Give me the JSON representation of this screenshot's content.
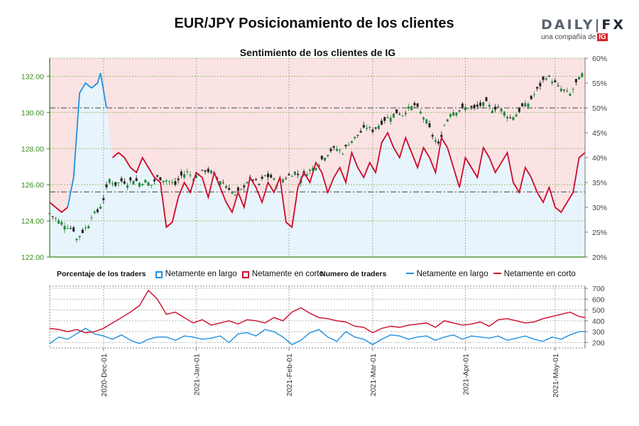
{
  "header": {
    "title": "EUR/JPY Posicionamiento de los clientes",
    "subtitle": "Sentimiento de los clientes de IG"
  },
  "logo": {
    "brand_a": "DAILY",
    "brand_sep": "|",
    "brand_b": "FX",
    "tagline": "una compañía de",
    "badge": "IG"
  },
  "legend": {
    "pct_title": "Porcentaje de los traders",
    "pct_long": "Netamente en largo",
    "pct_short": "Netamente en corto",
    "num_title": "Numero de traders",
    "num_long": "Netamente en largo",
    "num_short": "Netamente en corto"
  },
  "colors": {
    "long": "#1e90e0",
    "short": "#cc0a2a",
    "long_fill": "#e8f4fc",
    "short_fill": "#fbe3e4",
    "candle_up": "#1f8a3a",
    "candle_down": "#222222",
    "axis_left": "#3a8a1a",
    "grid": "#9ab86a",
    "refline": "#666666"
  },
  "chart_data": [
    {
      "type": "candlestick+area",
      "title": "Sentimiento de los clientes de IG",
      "yleft_ticks": [
        "122.00",
        "124.00",
        "126.00",
        "128.00",
        "130.00",
        "132.00"
      ],
      "yleft_range": [
        122.0,
        133.0
      ],
      "yright_ticks": [
        "20%",
        "25%",
        "30%",
        "35%",
        "40%",
        "45%",
        "50%",
        "55%",
        "60%"
      ],
      "yright_range": [
        20,
        60
      ],
      "x_ticks": [
        "2020-Dec-01",
        "2021-Jan-01",
        "2021-Feb-01",
        "2021-Mar-01",
        "2021-Apr-01",
        "2021-May-01"
      ],
      "x_tick_days": [
        18,
        49,
        80,
        108,
        139,
        169
      ],
      "x_range": [
        0,
        179
      ],
      "reference_lines": [
        130.25,
        125.6
      ],
      "price_close": [
        [
          0,
          124.4
        ],
        [
          3,
          124.0
        ],
        [
          6,
          123.7
        ],
        [
          8,
          123.5
        ],
        [
          9,
          123.0
        ],
        [
          11,
          123.4
        ],
        [
          13,
          123.8
        ],
        [
          14,
          124.3
        ],
        [
          16,
          124.5
        ],
        [
          18,
          125.2
        ],
        [
          20,
          126.3
        ],
        [
          22,
          126.0
        ],
        [
          24,
          126.2
        ],
        [
          26,
          126.1
        ],
        [
          28,
          126.3
        ],
        [
          30,
          126.1
        ],
        [
          32,
          126.2
        ],
        [
          34,
          126.0
        ],
        [
          36,
          126.4
        ],
        [
          38,
          126.3
        ],
        [
          40,
          126.2
        ],
        [
          42,
          126.0
        ],
        [
          44,
          126.5
        ],
        [
          46,
          126.7
        ],
        [
          48,
          126.4
        ],
        [
          50,
          126.6
        ],
        [
          52,
          126.8
        ],
        [
          54,
          126.7
        ],
        [
          56,
          126.4
        ],
        [
          58,
          126.1
        ],
        [
          60,
          125.8
        ],
        [
          62,
          125.4
        ],
        [
          64,
          125.7
        ],
        [
          66,
          126.2
        ],
        [
          68,
          126.3
        ],
        [
          70,
          126.0
        ],
        [
          72,
          126.5
        ],
        [
          74,
          126.4
        ],
        [
          76,
          126.1
        ],
        [
          78,
          126.3
        ],
        [
          80,
          126.5
        ],
        [
          82,
          126.7
        ],
        [
          84,
          126.4
        ],
        [
          86,
          126.7
        ],
        [
          88,
          126.9
        ],
        [
          90,
          127.2
        ],
        [
          92,
          127.6
        ],
        [
          94,
          127.9
        ],
        [
          96,
          128.0
        ],
        [
          98,
          127.8
        ],
        [
          100,
          128.3
        ],
        [
          102,
          128.6
        ],
        [
          104,
          128.9
        ],
        [
          106,
          129.2
        ],
        [
          108,
          129.0
        ],
        [
          110,
          129.3
        ],
        [
          112,
          129.6
        ],
        [
          114,
          129.8
        ],
        [
          116,
          130.0
        ],
        [
          118,
          129.9
        ],
        [
          120,
          130.2
        ],
        [
          122,
          130.4
        ],
        [
          124,
          130.0
        ],
        [
          126,
          129.5
        ],
        [
          128,
          128.7
        ],
        [
          130,
          128.2
        ],
        [
          132,
          129.3
        ],
        [
          134,
          130.0
        ],
        [
          136,
          130.1
        ],
        [
          138,
          130.2
        ],
        [
          140,
          130.3
        ],
        [
          142,
          130.2
        ],
        [
          144,
          130.4
        ],
        [
          146,
          130.5
        ],
        [
          148,
          130.2
        ],
        [
          150,
          130.3
        ],
        [
          152,
          130.0
        ],
        [
          154,
          129.7
        ],
        [
          156,
          129.9
        ],
        [
          158,
          130.3
        ],
        [
          160,
          130.5
        ],
        [
          162,
          131.0
        ],
        [
          164,
          131.5
        ],
        [
          166,
          132.0
        ],
        [
          168,
          131.8
        ],
        [
          170,
          131.4
        ],
        [
          172,
          131.2
        ],
        [
          174,
          131.0
        ],
        [
          176,
          131.6
        ],
        [
          178,
          132.1
        ]
      ],
      "long_pct": [
        [
          0,
          31
        ],
        [
          2,
          30
        ],
        [
          4,
          29
        ],
        [
          6,
          30
        ],
        [
          8,
          36
        ],
        [
          10,
          53
        ],
        [
          12,
          55
        ],
        [
          14,
          54
        ],
        [
          16,
          55
        ],
        [
          17,
          57
        ],
        [
          19,
          50
        ],
        [
          21,
          40
        ],
        [
          23,
          41
        ],
        [
          25,
          40
        ],
        [
          27,
          38
        ],
        [
          29,
          37
        ],
        [
          31,
          40
        ],
        [
          33,
          38
        ],
        [
          35,
          36
        ],
        [
          37,
          35
        ],
        [
          39,
          26
        ],
        [
          41,
          27
        ],
        [
          43,
          32
        ],
        [
          45,
          35
        ],
        [
          47,
          33
        ],
        [
          49,
          37
        ],
        [
          51,
          36
        ],
        [
          53,
          32
        ],
        [
          55,
          37
        ],
        [
          57,
          34
        ],
        [
          59,
          31
        ],
        [
          61,
          29
        ],
        [
          63,
          33
        ],
        [
          65,
          30
        ],
        [
          67,
          36
        ],
        [
          69,
          34
        ],
        [
          71,
          31
        ],
        [
          73,
          35
        ],
        [
          75,
          33
        ],
        [
          77,
          36
        ],
        [
          79,
          27
        ],
        [
          81,
          26
        ],
        [
          83,
          34
        ],
        [
          85,
          37
        ],
        [
          87,
          35
        ],
        [
          89,
          39
        ],
        [
          91,
          37
        ],
        [
          93,
          33
        ],
        [
          95,
          36
        ],
        [
          97,
          38
        ],
        [
          99,
          35
        ],
        [
          101,
          41
        ],
        [
          103,
          38
        ],
        [
          105,
          36
        ],
        [
          107,
          39
        ],
        [
          109,
          37
        ],
        [
          111,
          43
        ],
        [
          113,
          45
        ],
        [
          115,
          42
        ],
        [
          117,
          40
        ],
        [
          119,
          44
        ],
        [
          121,
          41
        ],
        [
          123,
          38
        ],
        [
          125,
          42
        ],
        [
          127,
          40
        ],
        [
          129,
          37
        ],
        [
          131,
          44
        ],
        [
          133,
          42
        ],
        [
          135,
          38
        ],
        [
          137,
          34
        ],
        [
          139,
          40
        ],
        [
          141,
          38
        ],
        [
          143,
          36
        ],
        [
          145,
          42
        ],
        [
          147,
          40
        ],
        [
          149,
          37
        ],
        [
          151,
          39
        ],
        [
          153,
          41
        ],
        [
          155,
          35
        ],
        [
          157,
          33
        ],
        [
          159,
          38
        ],
        [
          161,
          36
        ],
        [
          163,
          33
        ],
        [
          165,
          31
        ],
        [
          167,
          34
        ],
        [
          169,
          30
        ],
        [
          171,
          29
        ],
        [
          173,
          31
        ],
        [
          175,
          33
        ],
        [
          177,
          40
        ],
        [
          179,
          41
        ]
      ],
      "long_pct_line_segments": [
        {
          "start": 0,
          "end": 6,
          "color": "short"
        },
        {
          "start": 6,
          "end": 20,
          "color": "long"
        },
        {
          "start": 20,
          "end": 179,
          "color": "short"
        }
      ]
    },
    {
      "type": "line",
      "title": "Numero de traders",
      "y_ticks": [
        "200",
        "300",
        "400",
        "500",
        "600",
        "700"
      ],
      "y_range": [
        150,
        720
      ],
      "series": [
        {
          "name": "Netamente en largo",
          "color": "long",
          "values": [
            [
              0,
              190
            ],
            [
              3,
              250
            ],
            [
              6,
              230
            ],
            [
              9,
              280
            ],
            [
              12,
              330
            ],
            [
              15,
              280
            ],
            [
              18,
              260
            ],
            [
              21,
              230
            ],
            [
              24,
              270
            ],
            [
              27,
              220
            ],
            [
              30,
              190
            ],
            [
              33,
              230
            ],
            [
              36,
              250
            ],
            [
              39,
              250
            ],
            [
              42,
              220
            ],
            [
              45,
              260
            ],
            [
              48,
              250
            ],
            [
              51,
              230
            ],
            [
              54,
              240
            ],
            [
              57,
              260
            ],
            [
              60,
              200
            ],
            [
              63,
              280
            ],
            [
              66,
              290
            ],
            [
              69,
              260
            ],
            [
              72,
              320
            ],
            [
              75,
              300
            ],
            [
              78,
              250
            ],
            [
              81,
              180
            ],
            [
              84,
              220
            ],
            [
              87,
              290
            ],
            [
              90,
              320
            ],
            [
              93,
              250
            ],
            [
              96,
              210
            ],
            [
              99,
              300
            ],
            [
              102,
              250
            ],
            [
              105,
              230
            ],
            [
              108,
              180
            ],
            [
              111,
              230
            ],
            [
              114,
              270
            ],
            [
              117,
              260
            ],
            [
              120,
              230
            ],
            [
              123,
              250
            ],
            [
              126,
              260
            ],
            [
              129,
              220
            ],
            [
              132,
              250
            ],
            [
              135,
              270
            ],
            [
              138,
              230
            ],
            [
              141,
              260
            ],
            [
              144,
              250
            ],
            [
              147,
              240
            ],
            [
              150,
              260
            ],
            [
              153,
              220
            ],
            [
              156,
              240
            ],
            [
              159,
              260
            ],
            [
              162,
              230
            ],
            [
              165,
              210
            ],
            [
              168,
              250
            ],
            [
              171,
              230
            ],
            [
              174,
              270
            ],
            [
              177,
              300
            ],
            [
              179,
              300
            ]
          ]
        },
        {
          "name": "Netamente en corto",
          "color": "short",
          "values": [
            [
              0,
              330
            ],
            [
              3,
              320
            ],
            [
              6,
              300
            ],
            [
              9,
              320
            ],
            [
              12,
              290
            ],
            [
              15,
              300
            ],
            [
              18,
              330
            ],
            [
              21,
              380
            ],
            [
              24,
              430
            ],
            [
              27,
              480
            ],
            [
              30,
              540
            ],
            [
              33,
              680
            ],
            [
              36,
              600
            ],
            [
              39,
              460
            ],
            [
              42,
              480
            ],
            [
              45,
              430
            ],
            [
              48,
              380
            ],
            [
              51,
              410
            ],
            [
              54,
              360
            ],
            [
              57,
              380
            ],
            [
              60,
              400
            ],
            [
              63,
              370
            ],
            [
              66,
              410
            ],
            [
              69,
              400
            ],
            [
              72,
              380
            ],
            [
              75,
              430
            ],
            [
              78,
              400
            ],
            [
              81,
              480
            ],
            [
              84,
              520
            ],
            [
              87,
              470
            ],
            [
              90,
              430
            ],
            [
              93,
              420
            ],
            [
              96,
              400
            ],
            [
              99,
              390
            ],
            [
              102,
              350
            ],
            [
              105,
              340
            ],
            [
              108,
              290
            ],
            [
              111,
              330
            ],
            [
              114,
              350
            ],
            [
              117,
              340
            ],
            [
              120,
              360
            ],
            [
              123,
              370
            ],
            [
              126,
              380
            ],
            [
              129,
              340
            ],
            [
              132,
              400
            ],
            [
              135,
              380
            ],
            [
              138,
              360
            ],
            [
              141,
              370
            ],
            [
              144,
              390
            ],
            [
              147,
              350
            ],
            [
              150,
              410
            ],
            [
              153,
              420
            ],
            [
              156,
              400
            ],
            [
              159,
              380
            ],
            [
              162,
              390
            ],
            [
              165,
              420
            ],
            [
              168,
              440
            ],
            [
              171,
              460
            ],
            [
              174,
              480
            ],
            [
              177,
              440
            ],
            [
              179,
              430
            ]
          ]
        }
      ]
    }
  ]
}
